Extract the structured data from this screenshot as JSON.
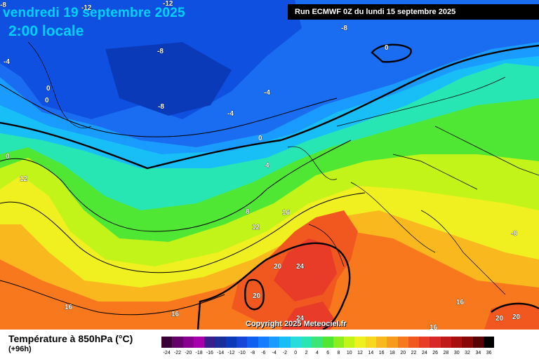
{
  "title": {
    "date": "vendredi 19 septembre 2025",
    "time": "2:00 locale"
  },
  "run_info": "Run ECMWF 0Z du lundi 15 septembre 2025",
  "copyright": "Copyright 2025 Meteociel.fr",
  "footer": {
    "variable": "Température à 850hPa (°C)",
    "lead": "(+96h)"
  },
  "legend": {
    "values": [
      "-24",
      "-22",
      "-20",
      "-18",
      "-16",
      "-14",
      "-12",
      "-10",
      "-8",
      "-6",
      "-4",
      "-2",
      "0",
      "2",
      "4",
      "6",
      "8",
      "10",
      "12",
      "14",
      "16",
      "18",
      "20",
      "22",
      "24",
      "26",
      "28",
      "30",
      "32",
      "34",
      "36"
    ],
    "colors": [
      "#3a0038",
      "#66006b",
      "#8a008e",
      "#a800aa",
      "#3c1e8a",
      "#1c2d9a",
      "#0a3ab8",
      "#1645d8",
      "#0f5ff0",
      "#157dff",
      "#1a9bff",
      "#18bff7",
      "#28dcdc",
      "#28e6b4",
      "#3ae678",
      "#50e634",
      "#8cee1e",
      "#c2f41a",
      "#f0f020",
      "#f8d81e",
      "#f8b81e",
      "#f89a1e",
      "#f8781e",
      "#f05820",
      "#e83c28",
      "#d82828",
      "#c01a1a",
      "#a81010",
      "#880808",
      "#580404",
      "#000000"
    ]
  },
  "contour_labels": [
    {
      "text": "-8"
    },
    {
      "text": "-12"
    },
    {
      "text": "-12"
    },
    {
      "text": "-8"
    },
    {
      "text": "-8"
    },
    {
      "text": "-4"
    },
    {
      "text": "0"
    },
    {
      "text": "0"
    },
    {
      "text": "-4"
    },
    {
      "text": "-8"
    },
    {
      "text": "-4"
    },
    {
      "text": "0"
    },
    {
      "text": "0"
    },
    {
      "text": "4"
    },
    {
      "text": "12"
    },
    {
      "text": "8"
    },
    {
      "text": "16"
    },
    {
      "text": "12"
    },
    {
      "text": "20"
    },
    {
      "text": "24"
    },
    {
      "text": "20"
    },
    {
      "text": "24"
    },
    {
      "text": "16"
    },
    {
      "text": "16"
    },
    {
      "text": "-8"
    },
    {
      "text": "16"
    },
    {
      "text": "20"
    },
    {
      "text": "20"
    },
    {
      "text": "16"
    },
    {
      "text": "0"
    },
    {
      "text": "0"
    }
  ]
}
